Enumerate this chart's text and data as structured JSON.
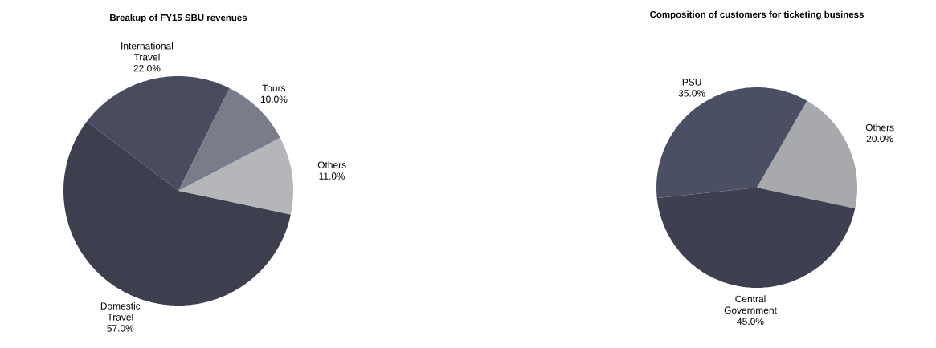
{
  "chart_data": [
    {
      "type": "pie",
      "title": "Breakup of FY15  SBU revenues",
      "categories": [
        "Others",
        "Tours",
        "International Travel",
        "Domestic Travel"
      ],
      "values": [
        11,
        10,
        22,
        57
      ],
      "value_labels": [
        "11.0%",
        "10.0%",
        "22.0%",
        "57.0%"
      ],
      "colors": [
        "#b5b6ba",
        "#7a7c89",
        "#494c5f",
        "#3d3f4f"
      ]
    },
    {
      "type": "pie",
      "title": "Composition of customers for ticketing business",
      "categories": [
        "Others",
        "PSU",
        "Central Government"
      ],
      "values": [
        20,
        35,
        45
      ],
      "value_labels": [
        "20.0%",
        "35.0%",
        "45.0%"
      ],
      "colors": [
        "#a8a9ad",
        "#4a4f63",
        "#3e4051"
      ]
    }
  ]
}
